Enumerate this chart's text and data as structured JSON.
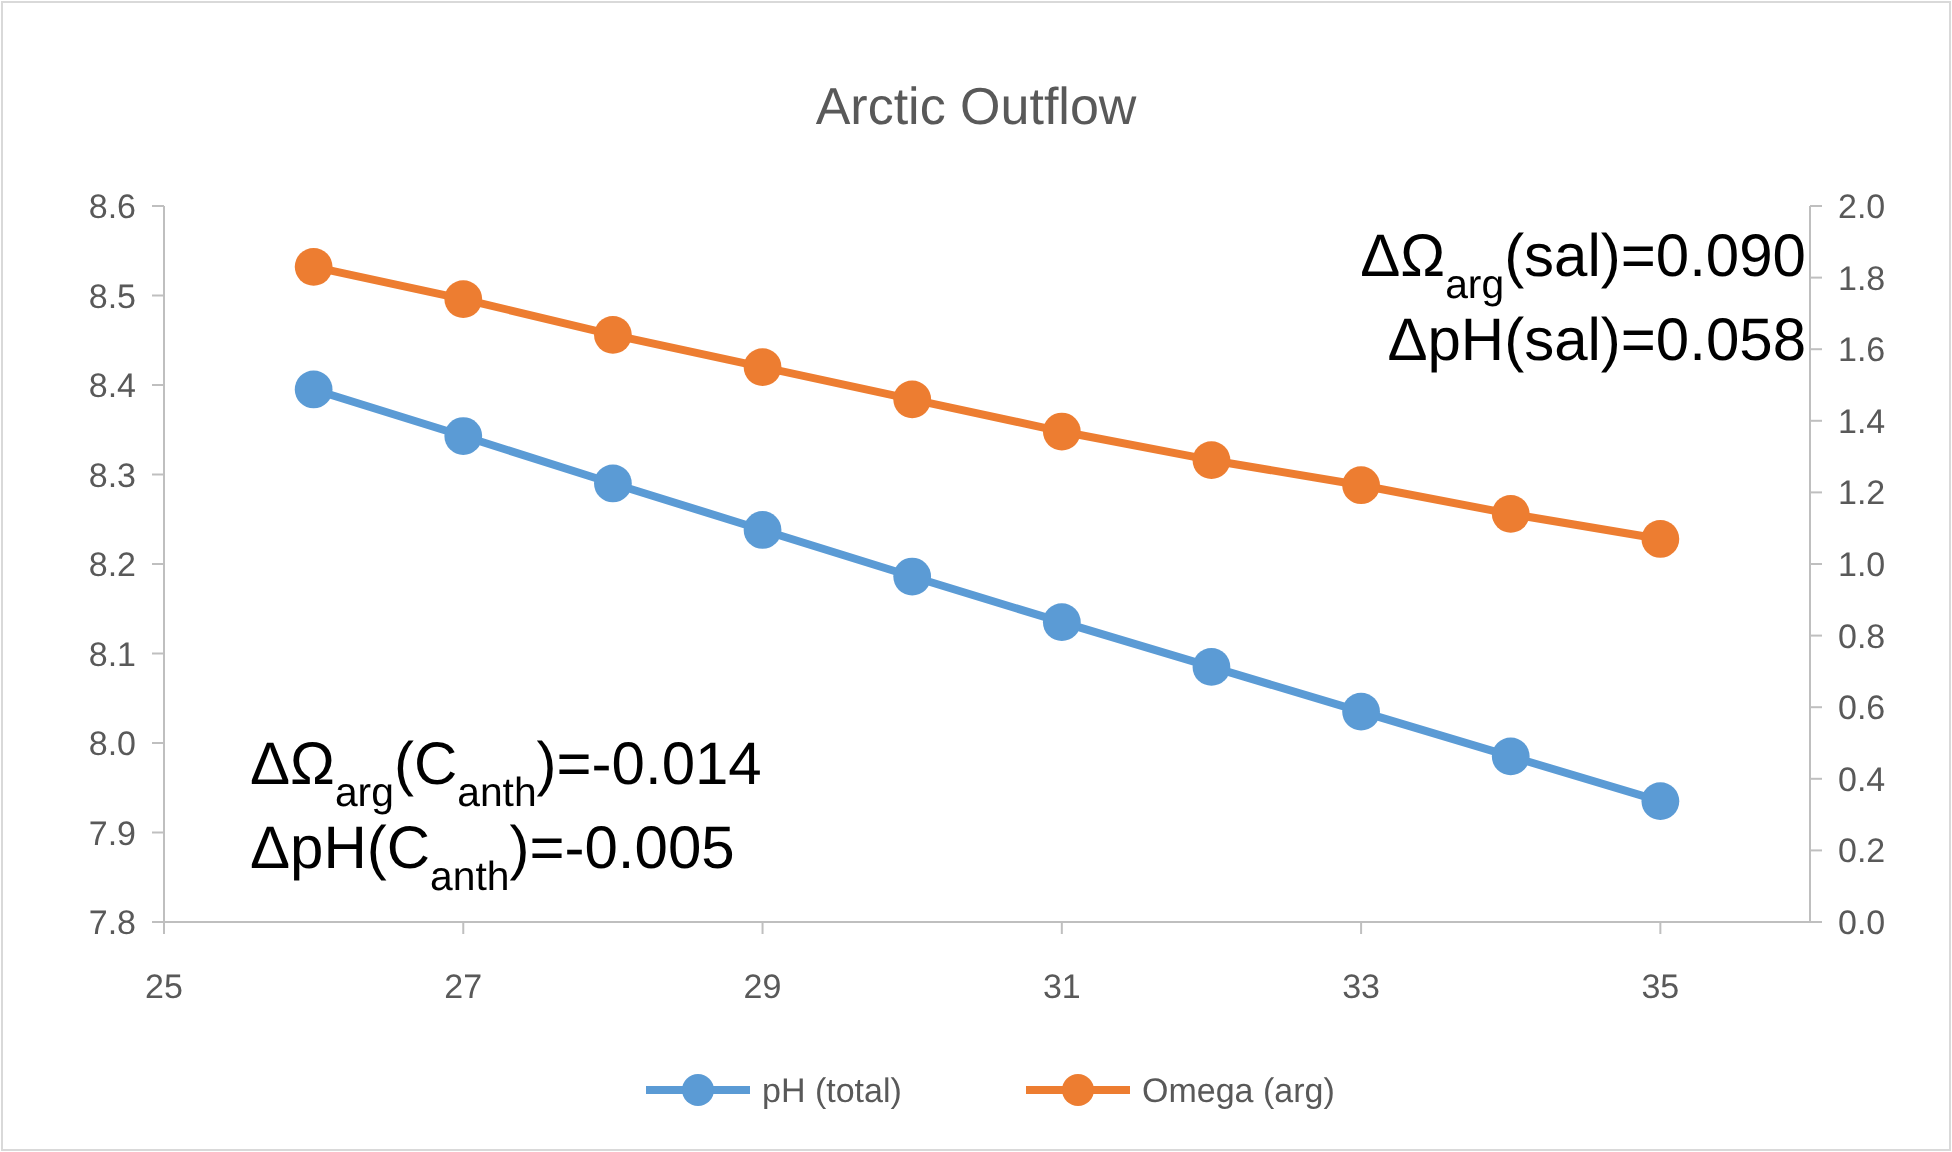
{
  "chart_data": {
    "type": "line",
    "title": "Arctic Outflow",
    "x": [
      26,
      27,
      28,
      29,
      30,
      31,
      32,
      33,
      34,
      35
    ],
    "series": [
      {
        "name": "pH (total)",
        "color": "#5b9bd5",
        "values": [
          8.395,
          8.343,
          8.29,
          8.238,
          8.186,
          8.135,
          8.085,
          8.035,
          7.985,
          7.935
        ]
      },
      {
        "name": "Omega (arg)",
        "color": "#ed7d31",
        "axis": "y2",
        "values": [
          1.83,
          1.74,
          1.64,
          1.55,
          1.46,
          1.37,
          1.29,
          1.22,
          1.14,
          1.07
        ]
      }
    ],
    "xlim": [
      25,
      36
    ],
    "xticks": [
      25,
      27,
      29,
      31,
      33,
      35
    ],
    "ylim": [
      7.8,
      8.6
    ],
    "yticks": [
      {
        "value": 7.8,
        "label": "7.8"
      },
      7.9,
      {
        "value": 8,
        "label": "8.0"
      },
      8.1,
      8.2,
      8.3,
      8.4,
      8.5,
      8.6
    ],
    "y2lim": [
      0,
      2
    ],
    "y2ticks": [
      {
        "value": 0,
        "label": "0.0"
      },
      0.2,
      0.4,
      0.6,
      0.8,
      {
        "value": 1,
        "label": "1.0"
      },
      1.2,
      1.4,
      1.6,
      1.8,
      {
        "value": 2,
        "label": "2.0"
      }
    ],
    "marker": "circle",
    "line_style": "solid",
    "legend": "bottom",
    "annotations": [
      "ΔΩ$_{arg}$(sal)=0.090",
      "ΔpH(sal)=0.058",
      "ΔΩ$_{arg}$(C$_{anth}$)=-0.014",
      "ΔpH(C$_{anth}$)=-0.005"
    ]
  }
}
